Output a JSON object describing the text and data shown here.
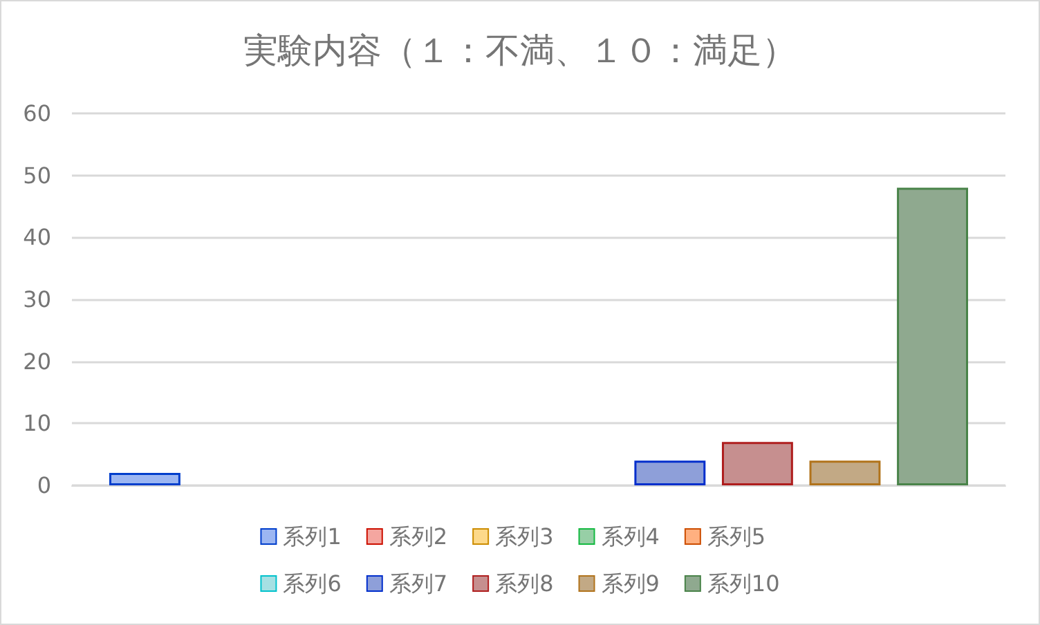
{
  "chart_data": {
    "type": "bar",
    "title": "実験内容（１：不満、１０：満足）",
    "categories": [
      null
    ],
    "series": [
      {
        "name": "系列1",
        "color": "#9cb6f2",
        "values": [
          2
        ]
      },
      {
        "name": "系列2",
        "color": "#f4a6a0",
        "values": [
          0
        ]
      },
      {
        "name": "系列3",
        "color": "#fdd98a",
        "values": [
          0
        ]
      },
      {
        "name": "系列4",
        "color": "#97cfa6",
        "values": [
          0
        ]
      },
      {
        "name": "系列5",
        "color": "#ffb080",
        "values": [
          0
        ]
      },
      {
        "name": "系列6",
        "color": "#a6e0e3",
        "values": [
          0
        ]
      },
      {
        "name": "系列7",
        "color": "#8e9fd9",
        "values": [
          4
        ]
      },
      {
        "name": "系列8",
        "color": "#c68f8f",
        "values": [
          7
        ]
      },
      {
        "name": "系列9",
        "color": "#c2a985",
        "values": [
          4
        ]
      },
      {
        "name": "系列10",
        "color": "#8fa98f",
        "values": [
          48
        ]
      }
    ],
    "ylim": [
      0,
      60
    ],
    "yticks": [
      0,
      10,
      20,
      30,
      40,
      50,
      60
    ],
    "grid": "y",
    "legend": "bottom",
    "tick_labels": "y"
  }
}
